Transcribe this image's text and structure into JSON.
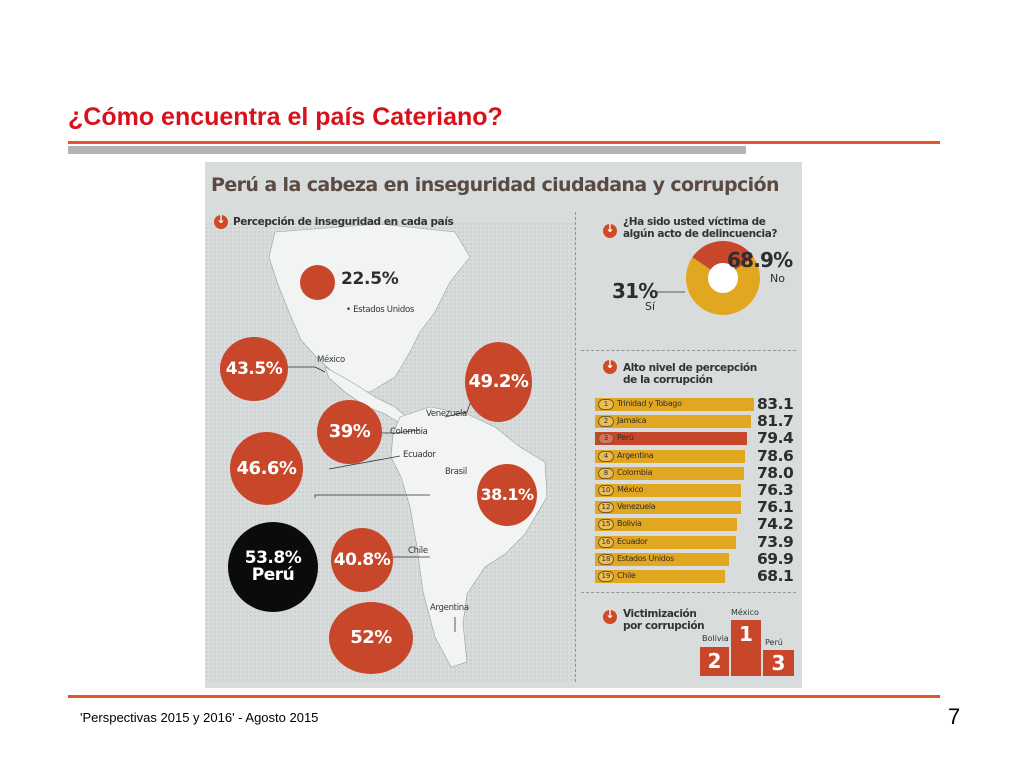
{
  "slide": {
    "title": "¿Cómo encuentra el país Cateriano?",
    "footer": "'Perspectivas 2015 y 2016' - Agosto 2015",
    "page_number": "7"
  },
  "colors": {
    "accent": "#d7121b",
    "rule": "#e8532e",
    "bubble": "#c8472a",
    "bar": "#e2a721",
    "highlight_bar": "#c8472a",
    "peru_bubble": "#0b0b0b"
  },
  "infographic": {
    "title": "Perú a la cabeza en inseguridad ciudadana y corrupción",
    "map_section": {
      "heading": "Percepción de inseguridad en cada país",
      "icon": "down-arrow-icon",
      "bubbles": [
        {
          "country": "Estados Unidos",
          "value": "22.5%"
        },
        {
          "country": "México",
          "value": "43.5%"
        },
        {
          "country": "Venezuela",
          "value": "49.2%"
        },
        {
          "country": "Colombia",
          "value": "39%"
        },
        {
          "country": "Ecuador",
          "value": "46.6%"
        },
        {
          "country": "Brasil",
          "value": "38.1%"
        },
        {
          "country": "Perú",
          "value": "53.8%",
          "label": "Perú"
        },
        {
          "country": "Chile",
          "value": "40.8%"
        },
        {
          "country": "Argentina",
          "value": "52%"
        }
      ],
      "country_labels": [
        "• Estados Unidos",
        "México",
        "Venezuela",
        "Colombia",
        "Ecuador",
        "Brasil",
        "Chile",
        "Argentina"
      ]
    },
    "victim_section": {
      "heading_line1": "¿Ha sido usted víctima de",
      "heading_line2": "algún acto de delincuencia?",
      "no_value": "68.9%",
      "no_label": "No",
      "yes_value": "31%",
      "yes_label": "Sí"
    },
    "corruption_section": {
      "heading_line1": "Alto nivel de percepción",
      "heading_line2": "de la corrupción"
    },
    "podium_section": {
      "heading_line1": "Victimización",
      "heading_line2": "por corrupción",
      "places": [
        {
          "country": "México",
          "rank": "1"
        },
        {
          "country": "Bolivia",
          "rank": "2"
        },
        {
          "country": "Perú",
          "rank": "3"
        }
      ]
    }
  },
  "chart_data": [
    {
      "type": "pie",
      "title": "¿Ha sido usted víctima de algún acto de delincuencia?",
      "categories": [
        "No",
        "Sí"
      ],
      "values": [
        68.9,
        31
      ]
    },
    {
      "type": "bar",
      "orientation": "horizontal",
      "title": "Alto nivel de percepción de la corrupción",
      "ranks": [
        "1",
        "2",
        "3",
        "4",
        "8",
        "10",
        "12",
        "15",
        "16",
        "18",
        "19"
      ],
      "categories": [
        "Trinidad y Tobago",
        "Jamaica",
        "Perú",
        "Argentina",
        "Colombia",
        "México",
        "Venezuela",
        "Bolivia",
        "Ecuador",
        "Estados Unidos",
        "Chile"
      ],
      "values": [
        83.1,
        81.7,
        79.4,
        78.6,
        78.0,
        76.3,
        76.1,
        74.2,
        73.9,
        69.9,
        68.1
      ],
      "value_labels": [
        "83.1",
        "81.7",
        "79.4",
        "78.6",
        "78.0",
        "76.3",
        "76.1",
        "74.2",
        "73.9",
        "69.9",
        "68.1"
      ],
      "highlight": "Perú",
      "xlim": [
        0,
        83.1
      ]
    }
  ]
}
